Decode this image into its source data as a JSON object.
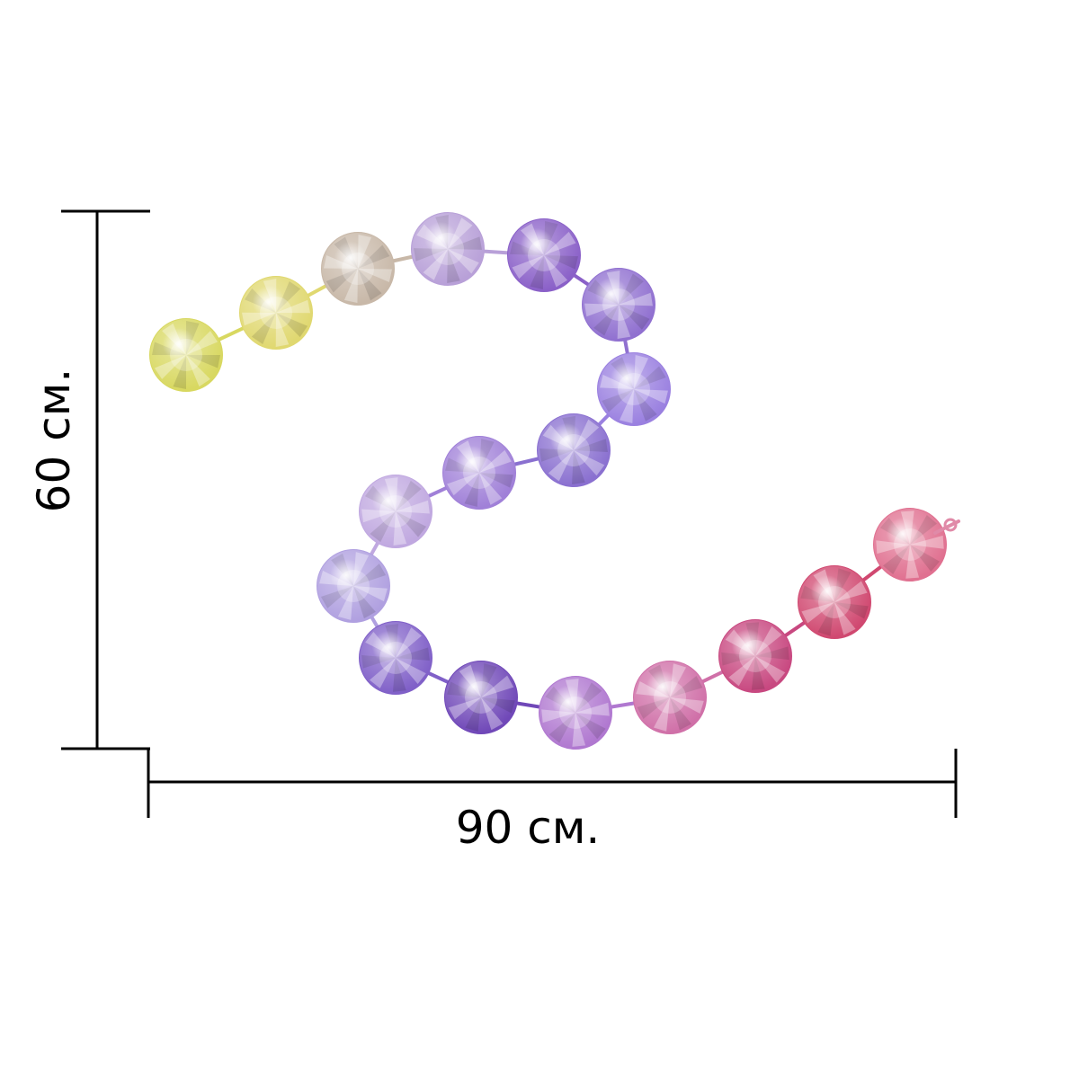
{
  "dimensions": {
    "width_label": "90 см.",
    "height_label": "60 см."
  },
  "garland": {
    "bead_colors": [
      "#d8d860",
      "#e0d870",
      "#c8b8a8",
      "#b8a0d8",
      "#8a60c8",
      "#9070d0",
      "#9a80e0",
      "#8a70d0",
      "#a080d8",
      "#c0a8e0",
      "#b0a0e0",
      "#8060c8",
      "#7048b8",
      "#b078d0",
      "#d070a8",
      "#c84880",
      "#d04870",
      "#e07090"
    ]
  }
}
